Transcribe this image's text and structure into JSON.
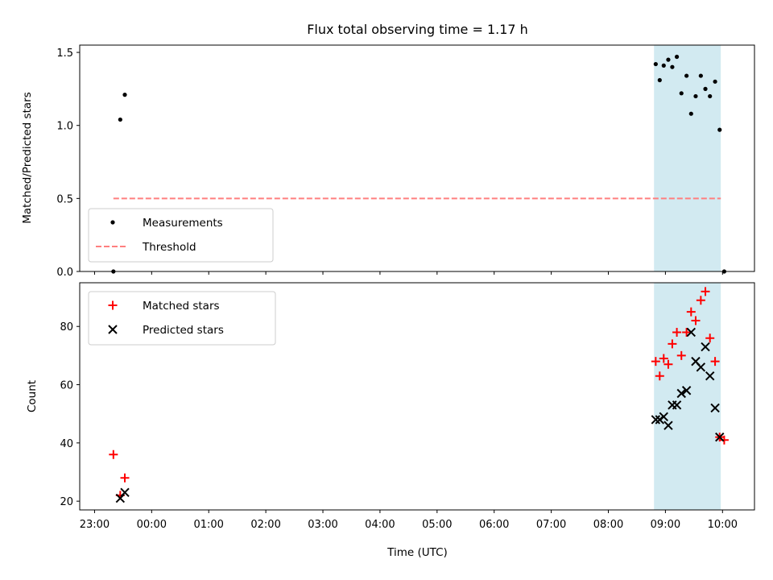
{
  "chart_data": [
    {
      "type": "scatter",
      "title": "Flux total observing time = 1.17 h",
      "ylabel": "Matched/Predicted stars",
      "xlabel": "",
      "ylim": [
        0,
        1.55
      ],
      "yticks": [
        "0.0",
        "0.5",
        "1.0",
        "1.5"
      ],
      "highlight_span": {
        "x_start": 32.8,
        "x_end": 33.97,
        "color": "#add8e6"
      },
      "legend_position": "lower-left",
      "series": [
        {
          "name": "Measurements",
          "marker": "dot",
          "color": "#000000",
          "x": [
            23.33,
            23.45,
            23.53,
            32.83,
            32.9,
            32.97,
            33.05,
            33.12,
            33.2,
            33.28,
            33.37,
            33.45,
            33.53,
            33.62,
            33.7,
            33.78,
            33.87,
            33.95,
            34.03
          ],
          "y": [
            0.0,
            1.04,
            1.21,
            1.42,
            1.31,
            1.41,
            1.45,
            1.4,
            1.47,
            1.22,
            1.34,
            1.08,
            1.2,
            1.34,
            1.25,
            1.2,
            1.3,
            0.97,
            0.0
          ]
        },
        {
          "name": "Threshold",
          "marker": "dashed-line",
          "color": "#ff7f7f",
          "x": [
            23.33,
            33.97
          ],
          "y": [
            0.5,
            0.5
          ]
        }
      ]
    },
    {
      "type": "scatter",
      "title": "",
      "ylabel": "Count",
      "xlabel": "Time (UTC)",
      "ylim": [
        17,
        95
      ],
      "yticks": [
        "20",
        "40",
        "60",
        "80"
      ],
      "highlight_span": {
        "x_start": 32.8,
        "x_end": 33.97,
        "color": "#add8e6"
      },
      "legend_position": "upper-left",
      "series": [
        {
          "name": "Matched stars",
          "marker": "plus",
          "color": "#ff0000",
          "x": [
            23.33,
            23.45,
            23.53,
            32.83,
            32.9,
            32.97,
            33.05,
            33.12,
            33.2,
            33.28,
            33.37,
            33.45,
            33.53,
            33.62,
            33.7,
            33.78,
            33.87,
            33.95,
            34.03
          ],
          "y": [
            36,
            22,
            28,
            68,
            63,
            69,
            67,
            74,
            78,
            70,
            78,
            85,
            82,
            89,
            92,
            76,
            68,
            42,
            41
          ]
        },
        {
          "name": "Predicted stars",
          "marker": "x",
          "color": "#000000",
          "x": [
            23.45,
            23.53,
            32.83,
            32.9,
            32.97,
            33.05,
            33.12,
            33.2,
            33.28,
            33.37,
            33.45,
            33.53,
            33.62,
            33.7,
            33.78,
            33.87,
            33.95
          ],
          "y": [
            21,
            23,
            48,
            48,
            49,
            46,
            53,
            53,
            57,
            58,
            78,
            68,
            66,
            73,
            63,
            52,
            42
          ]
        }
      ]
    }
  ],
  "x_axis": {
    "ticks": [
      {
        "value": 23,
        "label": "23:00"
      },
      {
        "value": 24,
        "label": "00:00"
      },
      {
        "value": 25,
        "label": "01:00"
      },
      {
        "value": 26,
        "label": "02:00"
      },
      {
        "value": 27,
        "label": "03:00"
      },
      {
        "value": 28,
        "label": "04:00"
      },
      {
        "value": 29,
        "label": "05:00"
      },
      {
        "value": 30,
        "label": "06:00"
      },
      {
        "value": 31,
        "label": "07:00"
      },
      {
        "value": 32,
        "label": "08:00"
      },
      {
        "value": 33,
        "label": "09:00"
      },
      {
        "value": 34,
        "label": "10:00"
      }
    ],
    "range": [
      22.74,
      34.56
    ]
  }
}
